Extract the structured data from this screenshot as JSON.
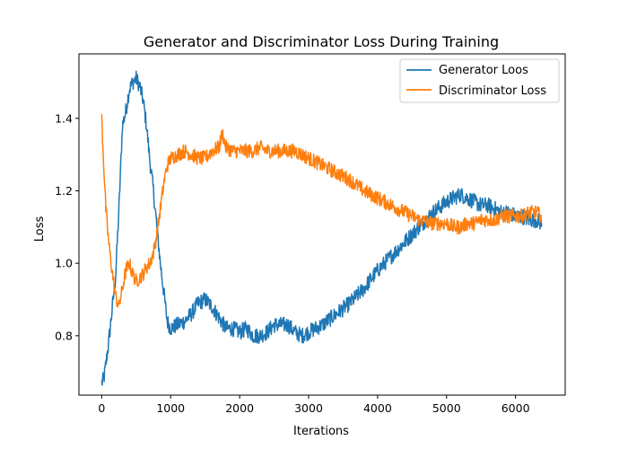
{
  "chart_data": {
    "type": "line",
    "title": "Generator and Discriminator Loss During Training",
    "xlabel": "Iterations",
    "ylabel": "Loss",
    "xlim": [
      -330,
      6720
    ],
    "ylim": [
      0.636,
      1.578
    ],
    "xticks": [
      0,
      1000,
      2000,
      3000,
      4000,
      5000,
      6000
    ],
    "yticks": [
      0.8,
      1.0,
      1.2,
      1.4
    ],
    "xtick_labels": [
      "0",
      "1000",
      "2000",
      "3000",
      "4000",
      "5000",
      "6000"
    ],
    "ytick_labels": [
      "0.8",
      "1.0",
      "1.2",
      "1.4"
    ],
    "grid": false,
    "legend_position": "top-right",
    "series": [
      {
        "name": "Generator Loos",
        "color": "#1f77b4",
        "noise": 0.022,
        "x": [
          0,
          30,
          60,
          100,
          150,
          200,
          250,
          300,
          350,
          400,
          450,
          500,
          550,
          600,
          650,
          700,
          750,
          800,
          850,
          900,
          950,
          1000,
          1100,
          1200,
          1300,
          1400,
          1500,
          1600,
          1700,
          1800,
          1900,
          2000,
          2100,
          2200,
          2300,
          2400,
          2500,
          2600,
          2700,
          2800,
          2900,
          3000,
          3200,
          3400,
          3600,
          3800,
          4000,
          4200,
          4400,
          4600,
          4800,
          5000,
          5100,
          5200,
          5300,
          5400,
          5500,
          5600,
          5700,
          5800,
          5900,
          6000,
          6100,
          6200,
          6300,
          6380
        ],
        "y": [
          0.67,
          0.68,
          0.72,
          0.78,
          0.87,
          0.96,
          1.15,
          1.38,
          1.42,
          1.48,
          1.5,
          1.51,
          1.49,
          1.45,
          1.38,
          1.28,
          1.2,
          1.1,
          1.0,
          0.92,
          0.84,
          0.82,
          0.83,
          0.84,
          0.86,
          0.89,
          0.9,
          0.88,
          0.85,
          0.82,
          0.82,
          0.81,
          0.82,
          0.8,
          0.8,
          0.81,
          0.83,
          0.83,
          0.83,
          0.81,
          0.8,
          0.81,
          0.83,
          0.86,
          0.89,
          0.93,
          0.98,
          1.02,
          1.06,
          1.1,
          1.14,
          1.17,
          1.18,
          1.19,
          1.18,
          1.17,
          1.16,
          1.16,
          1.15,
          1.14,
          1.14,
          1.13,
          1.13,
          1.12,
          1.12,
          1.11
        ]
      },
      {
        "name": "Discriminator Loss",
        "color": "#ff7f0e",
        "noise": 0.02,
        "x": [
          0,
          30,
          60,
          100,
          150,
          200,
          250,
          300,
          350,
          400,
          450,
          500,
          550,
          600,
          650,
          700,
          750,
          800,
          850,
          900,
          950,
          1000,
          1100,
          1200,
          1300,
          1400,
          1500,
          1600,
          1700,
          1750,
          1800,
          1900,
          2000,
          2100,
          2200,
          2300,
          2400,
          2500,
          2600,
          2700,
          2800,
          2900,
          3000,
          3200,
          3400,
          3600,
          3800,
          4000,
          4200,
          4400,
          4600,
          4800,
          5000,
          5100,
          5200,
          5300,
          5400,
          5500,
          5600,
          5700,
          5800,
          5900,
          6000,
          6100,
          6200,
          6300,
          6380
        ],
        "y": [
          1.4,
          1.27,
          1.15,
          1.06,
          0.98,
          0.91,
          0.88,
          0.93,
          0.98,
          1.0,
          0.97,
          0.95,
          0.96,
          0.97,
          0.99,
          1.0,
          1.03,
          1.08,
          1.15,
          1.22,
          1.27,
          1.29,
          1.3,
          1.31,
          1.3,
          1.29,
          1.29,
          1.31,
          1.32,
          1.36,
          1.32,
          1.31,
          1.31,
          1.31,
          1.31,
          1.32,
          1.31,
          1.31,
          1.31,
          1.31,
          1.31,
          1.3,
          1.29,
          1.27,
          1.25,
          1.23,
          1.2,
          1.18,
          1.16,
          1.14,
          1.12,
          1.11,
          1.11,
          1.1,
          1.1,
          1.11,
          1.11,
          1.12,
          1.12,
          1.12,
          1.13,
          1.13,
          1.13,
          1.13,
          1.14,
          1.14,
          1.13
        ]
      }
    ]
  }
}
